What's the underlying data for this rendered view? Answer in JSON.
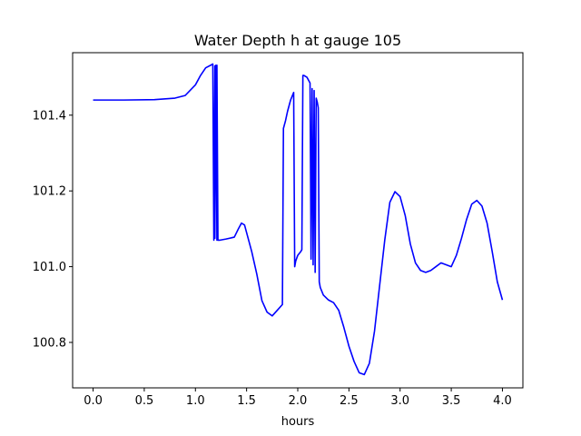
{
  "chart_data": {
    "type": "line",
    "title": "Water Depth h at gauge 105",
    "xlabel": "hours",
    "ylabel": "",
    "xlim": [
      -0.2,
      4.2
    ],
    "ylim": [
      100.68,
      101.565
    ],
    "xticks": [
      {
        "value": 0.0,
        "label": "0.0"
      },
      {
        "value": 0.5,
        "label": "0.5"
      },
      {
        "value": 1.0,
        "label": "1.0"
      },
      {
        "value": 1.5,
        "label": "1.5"
      },
      {
        "value": 2.0,
        "label": "2.0"
      },
      {
        "value": 2.5,
        "label": "2.5"
      },
      {
        "value": 3.0,
        "label": "3.0"
      },
      {
        "value": 3.5,
        "label": "3.5"
      },
      {
        "value": 4.0,
        "label": "4.0"
      }
    ],
    "yticks": [
      {
        "value": 100.8,
        "label": "100.8"
      },
      {
        "value": 101.0,
        "label": "101.0"
      },
      {
        "value": 101.2,
        "label": "101.2"
      },
      {
        "value": 101.4,
        "label": "101.4"
      }
    ],
    "grid": false,
    "series": [
      {
        "color": "#0000ff",
        "x": [
          0.0,
          0.3,
          0.6,
          0.8,
          0.9,
          1.0,
          1.05,
          1.1,
          1.15,
          1.17,
          1.18,
          1.19,
          1.19,
          1.2,
          1.21,
          1.21,
          1.22,
          1.22,
          1.24,
          1.24,
          1.3,
          1.38,
          1.42,
          1.45,
          1.48,
          1.55,
          1.6,
          1.65,
          1.7,
          1.75,
          1.8,
          1.85,
          1.86,
          1.86,
          1.88,
          1.9,
          1.93,
          1.96,
          1.97,
          1.98,
          2.0,
          2.03,
          2.04,
          2.05,
          2.06,
          2.09,
          2.12,
          2.13,
          2.14,
          2.15,
          2.15,
          2.16,
          2.17,
          2.17,
          2.18,
          2.19,
          2.2,
          2.21,
          2.21,
          2.22,
          2.25,
          2.3,
          2.35,
          2.4,
          2.45,
          2.5,
          2.55,
          2.6,
          2.65,
          2.7,
          2.75,
          2.8,
          2.85,
          2.9,
          2.95,
          3.0,
          3.05,
          3.1,
          3.15,
          3.2,
          3.25,
          3.3,
          3.35,
          3.4,
          3.45,
          3.5,
          3.55,
          3.6,
          3.65,
          3.7,
          3.75,
          3.8,
          3.85,
          3.9,
          3.95,
          4.0
        ],
        "y": [
          101.44,
          101.44,
          101.441,
          101.445,
          101.452,
          101.48,
          101.505,
          101.525,
          101.532,
          101.535,
          101.07,
          101.53,
          101.075,
          101.532,
          101.07,
          101.532,
          101.07,
          101.07,
          101.07,
          101.07,
          101.073,
          101.078,
          101.1,
          101.115,
          101.11,
          101.04,
          100.98,
          100.91,
          100.88,
          100.87,
          100.885,
          100.9,
          101.365,
          101.365,
          101.385,
          101.41,
          101.44,
          101.46,
          101.0,
          101.015,
          101.03,
          101.04,
          101.045,
          101.505,
          101.505,
          101.5,
          101.485,
          101.02,
          101.47,
          101.02,
          101.005,
          101.465,
          100.985,
          100.985,
          101.445,
          101.435,
          101.42,
          100.96,
          100.96,
          100.945,
          100.925,
          100.912,
          100.905,
          100.885,
          100.84,
          100.79,
          100.75,
          100.72,
          100.715,
          100.745,
          100.83,
          100.95,
          101.07,
          101.17,
          101.198,
          101.185,
          101.135,
          101.06,
          101.01,
          100.99,
          100.985,
          100.99,
          101.0,
          101.01,
          101.005,
          101.0,
          101.03,
          101.075,
          101.125,
          101.165,
          101.175,
          101.16,
          101.115,
          101.04,
          100.96,
          100.912
        ]
      }
    ]
  }
}
